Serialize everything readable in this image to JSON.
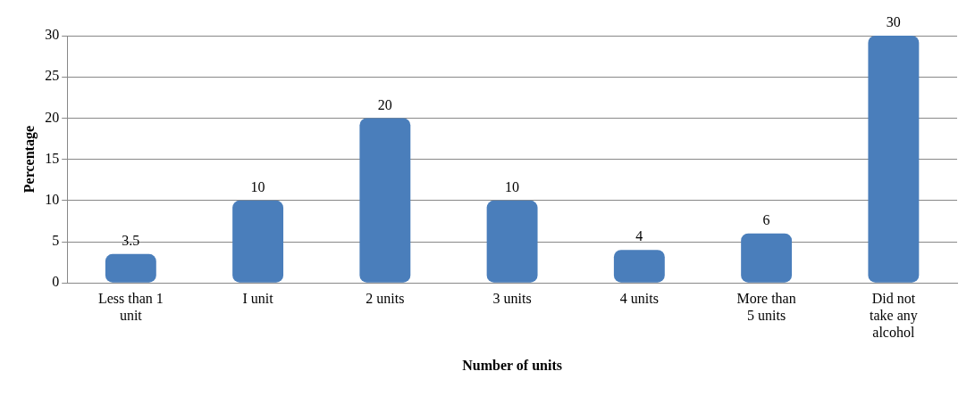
{
  "chart_data": {
    "type": "bar",
    "xlabel": "Number of units",
    "ylabel": "Percentage",
    "categories": [
      "Less than 1 unit",
      "I unit",
      "2 units",
      "3 units",
      "4 units",
      "More than 5 units",
      "Did not take any alcohol"
    ],
    "values": [
      3.5,
      10,
      20,
      10,
      4,
      6,
      30
    ],
    "color": "#4a7ebb",
    "ylim": [
      0,
      30
    ],
    "yticks": [
      0,
      5,
      10,
      15,
      20,
      25,
      30
    ],
    "grid": "y",
    "data_labels": true,
    "legend": false
  }
}
